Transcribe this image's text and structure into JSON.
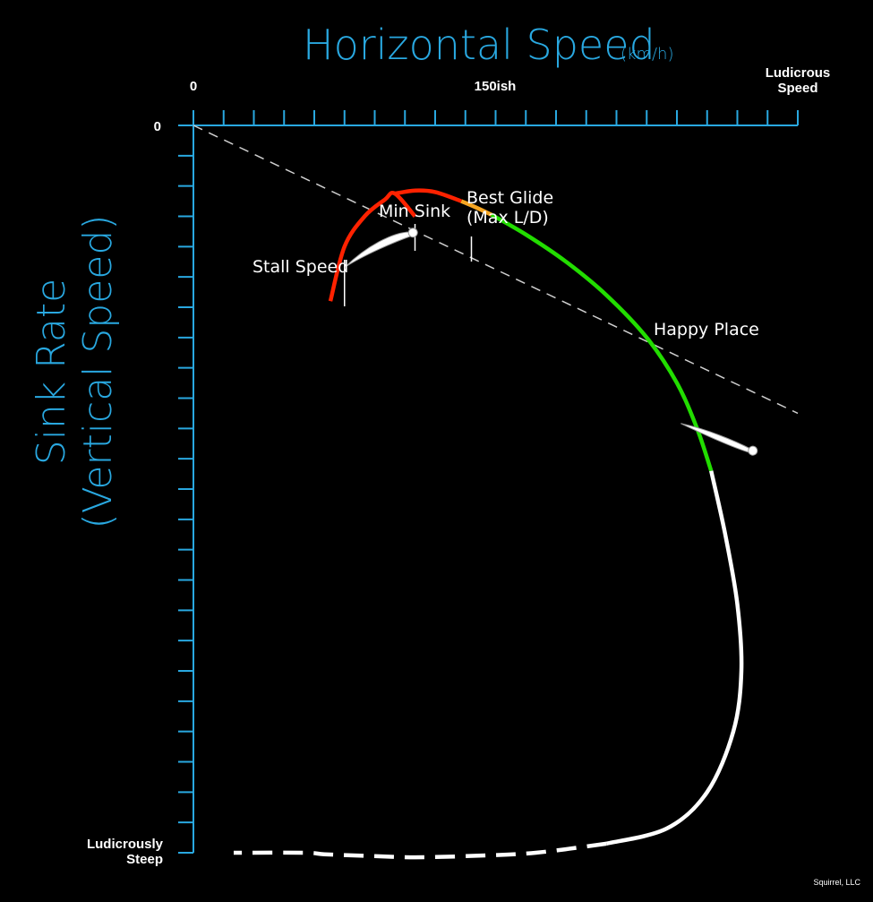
{
  "chart_data": {
    "type": "line",
    "title": "Horizontal Speed",
    "title_unit": "(km/h)",
    "xlabel": "Horizontal Speed (km/h)",
    "ylabel_line1": "Sink Rate",
    "ylabel_line2": "(Vertical Speed)",
    "x_ticks": [
      {
        "value": 0,
        "label": "0"
      },
      {
        "value": 150,
        "label": "150ish"
      },
      {
        "value": 300,
        "label_lines": [
          "Ludicrous",
          "Speed"
        ]
      }
    ],
    "y_ticks": [
      {
        "value": 0,
        "label": "0"
      },
      {
        "value": 240,
        "label_lines": [
          "Ludicrously",
          "Steep"
        ]
      }
    ],
    "xlim": [
      0,
      300
    ],
    "ylim": [
      0,
      240
    ],
    "glide_line": {
      "style": "dashed",
      "x": [
        0,
        300
      ],
      "y": [
        0,
        95
      ]
    },
    "series": [
      {
        "color": "#ff2200",
        "x": [
          68,
          75,
          85,
          95,
          100,
          110
        ],
        "y": [
          58,
          40,
          30,
          24.5,
          22.5,
          30
        ]
      },
      {
        "color": "#ff2200",
        "x": [
          100,
          110,
          120,
          133
        ],
        "y": [
          22.5,
          21.5,
          22.0,
          25.0
        ]
      },
      {
        "color": "#f5a623",
        "x": [
          133,
          140,
          148
        ],
        "y": [
          25.0,
          27.0,
          29.5
        ]
      },
      {
        "color": "#22dd00",
        "x": [
          148,
          165,
          185,
          205,
          225,
          240,
          250,
          257
        ],
        "y": [
          29.5,
          36,
          45,
          56,
          70,
          85,
          100,
          114
        ]
      },
      {
        "color": "#ffffff",
        "x": [
          257,
          264,
          270,
          272,
          268,
          255,
          235,
          205
        ],
        "y": [
          114,
          135,
          158,
          180,
          200,
          220,
          232,
          237
        ]
      },
      {
        "color": "#ffffff",
        "style": "dashed",
        "x": [
          205,
          170,
          140,
          110,
          85,
          65,
          55,
          20
        ],
        "y": [
          237,
          240,
          241,
          241.5,
          241,
          240.5,
          240,
          240
        ]
      }
    ],
    "markers": [
      {
        "label": "Stall Speed",
        "x": 75
      },
      {
        "label": "Min Sink",
        "x": 110
      },
      {
        "label_lines": [
          "Best Glide",
          "(Max L/D)"
        ],
        "x": 138
      }
    ],
    "annotations": [
      {
        "label": "Happy Place"
      }
    ],
    "credit": "Squirrel, LLC"
  }
}
